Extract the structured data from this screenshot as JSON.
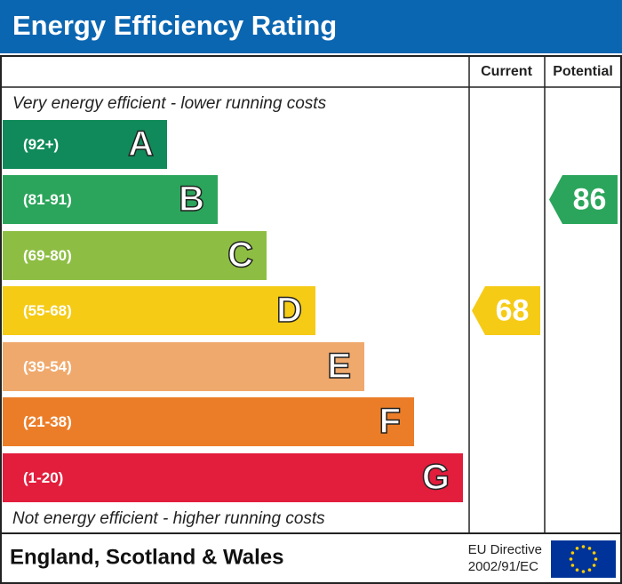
{
  "header": {
    "title": "Energy Efficiency Rating"
  },
  "columns": {
    "current": "Current",
    "potential": "Potential"
  },
  "notes": {
    "top": "Very energy efficient - lower running costs",
    "bottom": "Not energy efficient - higher running costs"
  },
  "bands": [
    {
      "range": "(92+)",
      "letter": "A",
      "color": "#108a5a"
    },
    {
      "range": "(81-91)",
      "letter": "B",
      "color": "#2ba55b"
    },
    {
      "range": "(69-80)",
      "letter": "C",
      "color": "#8dbe43"
    },
    {
      "range": "(55-68)",
      "letter": "D",
      "color": "#f5cb16"
    },
    {
      "range": "(39-54)",
      "letter": "E",
      "color": "#f0a96c"
    },
    {
      "range": "(21-38)",
      "letter": "F",
      "color": "#ec7d28"
    },
    {
      "range": "(1-20)",
      "letter": "G",
      "color": "#e31d3c"
    }
  ],
  "ratings": {
    "current": {
      "value": 68,
      "color": "#f5cb16"
    },
    "potential": {
      "value": 86,
      "color": "#2ba55b"
    }
  },
  "footer": {
    "region": "England, Scotland & Wales",
    "directive": [
      "EU Directive",
      "2002/91/EC"
    ]
  }
}
